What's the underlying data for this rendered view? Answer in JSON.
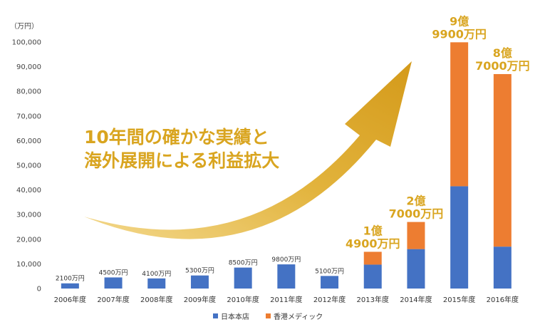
{
  "chart_data": {
    "type": "bar",
    "stacked": true,
    "unit_label": "（万円）",
    "categories": [
      "2006年度",
      "2007年度",
      "2008年度",
      "2009年度",
      "2010年度",
      "2011年度",
      "2012年度",
      "2013年度",
      "2014年度",
      "2015年度",
      "2016年度"
    ],
    "series": [
      {
        "name": "日本本店",
        "color": "#4472C4",
        "values": [
          2100,
          4500,
          4100,
          5300,
          8500,
          9800,
          5100,
          9700,
          16000,
          41500,
          17000
        ]
      },
      {
        "name": "香港メディック",
        "color": "#ED7D31",
        "values": [
          0,
          0,
          0,
          0,
          0,
          0,
          0,
          5200,
          11000,
          58400,
          70000
        ]
      }
    ],
    "ylim": [
      0,
      100000
    ],
    "yticks": [
      "0",
      "10,000",
      "20,000",
      "30,000",
      "40,000",
      "50,000",
      "60,000",
      "70,000",
      "80,000",
      "90,000",
      "100,000"
    ],
    "small_labels": [
      "2100万円",
      "4500万円",
      "4100万円",
      "5300万円",
      "8500万円",
      "9800万円",
      "5100万円"
    ],
    "big_labels": [
      {
        "category_index": 7,
        "line1": "1億",
        "line2": "4900万円"
      },
      {
        "category_index": 8,
        "line1": "2億",
        "line2": "7000万円"
      },
      {
        "category_index": 9,
        "line1": "9億",
        "line2": "9900万円"
      },
      {
        "category_index": 10,
        "line1": "8億",
        "line2": "7000万円"
      }
    ],
    "callout": [
      "10年間の確かな実績と",
      "海外展開による利益拡大"
    ],
    "arrow_color": "#D9A520",
    "legend_position": "bottom"
  }
}
